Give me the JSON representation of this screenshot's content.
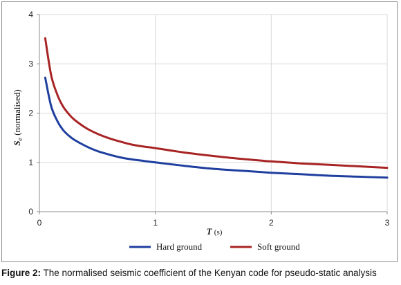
{
  "chart_data": {
    "type": "line",
    "xlabel": "T (s)",
    "xlabel_var": "T",
    "xlabel_unit": "(s)",
    "ylabel": "Se (normalised)",
    "ylabel_var": "S",
    "ylabel_sub": "e",
    "ylabel_rest": "(normalised)",
    "xlim": [
      0,
      3
    ],
    "ylim": [
      0,
      4
    ],
    "xticks": [
      0,
      1,
      2,
      3
    ],
    "yticks": [
      0,
      1,
      2,
      3,
      4
    ],
    "grid": "both",
    "legend_position": "bottom",
    "series": [
      {
        "name": "Hard ground",
        "color": "#1f3f9f",
        "x": [
          0.05,
          0.1,
          0.15,
          0.2,
          0.25,
          0.3,
          0.4,
          0.5,
          0.6,
          0.7,
          0.8,
          0.9,
          1.0,
          1.25,
          1.5,
          1.75,
          2.0,
          2.25,
          2.5,
          2.75,
          3.0
        ],
        "y": [
          2.72,
          2.15,
          1.86,
          1.67,
          1.55,
          1.46,
          1.33,
          1.23,
          1.16,
          1.1,
          1.06,
          1.03,
          1.0,
          0.93,
          0.87,
          0.83,
          0.79,
          0.76,
          0.73,
          0.71,
          0.69
        ]
      },
      {
        "name": "Soft ground",
        "color": "#a82424",
        "x": [
          0.05,
          0.1,
          0.15,
          0.2,
          0.25,
          0.3,
          0.4,
          0.5,
          0.6,
          0.7,
          0.8,
          0.9,
          1.0,
          1.25,
          1.5,
          1.75,
          2.0,
          2.25,
          2.5,
          2.75,
          3.0
        ],
        "y": [
          3.52,
          2.78,
          2.4,
          2.15,
          1.99,
          1.87,
          1.7,
          1.58,
          1.49,
          1.42,
          1.36,
          1.32,
          1.29,
          1.2,
          1.13,
          1.07,
          1.02,
          0.98,
          0.95,
          0.92,
          0.89
        ]
      }
    ]
  },
  "caption": {
    "label": "Figure 2:",
    "text": " The normalised seismic coefficient of the Kenyan code for pseudo-static analysis"
  }
}
